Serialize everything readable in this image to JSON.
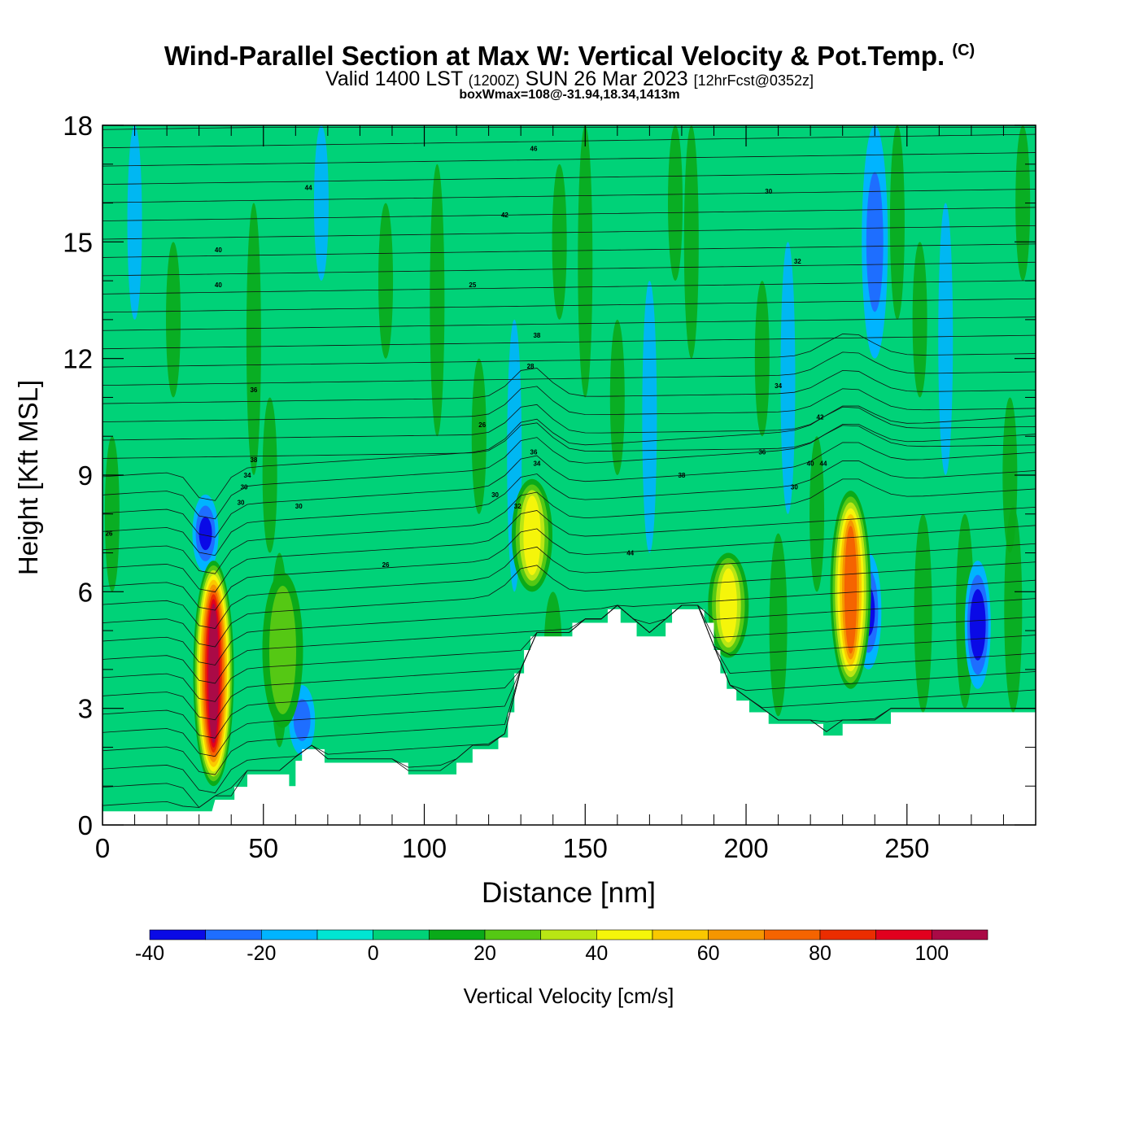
{
  "header": {
    "title": "Wind-Parallel Section at Max W: Vertical Velocity & Pot.Temp.",
    "copyright_mark": "(C)",
    "valid_prefix": "Valid 1400 LST",
    "valid_utc": "(1200Z)",
    "valid_date": "SUN 26 Mar 2023",
    "forecast": "[12hrFcst@0352z]",
    "box_info": "boxWmax=108@-31.94,18.34,1413m"
  },
  "colorbar": {
    "label": "Vertical Velocity [cm/s]",
    "ticks": [
      "-40",
      "-20",
      "0",
      "20",
      "40",
      "60",
      "80",
      "100"
    ],
    "levels": [
      -40,
      -30,
      -20,
      -10,
      0,
      10,
      20,
      30,
      40,
      50,
      60,
      70,
      80,
      90,
      100,
      110
    ],
    "colors": [
      "#0a0ae6",
      "#1e6eff",
      "#00b4ff",
      "#00e6d2",
      "#00d278",
      "#0aaa19",
      "#55c814",
      "#b9e614",
      "#f5f50a",
      "#fac800",
      "#f59600",
      "#f56400",
      "#eb2d00",
      "#e1001e",
      "#aa0a46"
    ]
  },
  "chart_data": {
    "type": "heatmap",
    "title": "Wind-Parallel Section at Max W: Vertical Velocity & Pot.Temp.",
    "xlabel": "Distance [nm]",
    "ylabel": "Height [Kft MSL]",
    "xlim": [
      0,
      290
    ],
    "ylim": [
      0,
      18
    ],
    "x_ticks": [
      0,
      50,
      100,
      150,
      200,
      250
    ],
    "y_ticks": [
      0,
      3,
      6,
      9,
      12,
      15,
      18
    ],
    "background_value_cm_s": 0,
    "terrain": [
      {
        "x": 0,
        "h": 0.35
      },
      {
        "x": 30,
        "h": 0.35
      },
      {
        "x": 34,
        "h": 0.35
      },
      {
        "x": 35,
        "h": 0.65
      },
      {
        "x": 41,
        "h": 0.65
      },
      {
        "x": 41,
        "h": 0.98
      },
      {
        "x": 45,
        "h": 0.98
      },
      {
        "x": 45,
        "h": 1.3
      },
      {
        "x": 58,
        "h": 1.3
      },
      {
        "x": 58,
        "h": 1.0
      },
      {
        "x": 60,
        "h": 1.0
      },
      {
        "x": 60,
        "h": 1.65
      },
      {
        "x": 62,
        "h": 1.65
      },
      {
        "x": 62,
        "h": 1.95
      },
      {
        "x": 69,
        "h": 1.95
      },
      {
        "x": 69,
        "h": 1.6
      },
      {
        "x": 95,
        "h": 1.6
      },
      {
        "x": 95,
        "h": 1.3
      },
      {
        "x": 110,
        "h": 1.3
      },
      {
        "x": 110,
        "h": 1.6
      },
      {
        "x": 115,
        "h": 1.6
      },
      {
        "x": 115,
        "h": 1.95
      },
      {
        "x": 123,
        "h": 1.95
      },
      {
        "x": 123,
        "h": 2.25
      },
      {
        "x": 126,
        "h": 2.25
      },
      {
        "x": 126,
        "h": 2.9
      },
      {
        "x": 128,
        "h": 2.9
      },
      {
        "x": 128,
        "h": 3.9
      },
      {
        "x": 131,
        "h": 3.9
      },
      {
        "x": 131,
        "h": 4.5
      },
      {
        "x": 133,
        "h": 4.5
      },
      {
        "x": 133,
        "h": 4.85
      },
      {
        "x": 146,
        "h": 4.85
      },
      {
        "x": 146,
        "h": 5.2
      },
      {
        "x": 157,
        "h": 5.2
      },
      {
        "x": 157,
        "h": 5.55
      },
      {
        "x": 161,
        "h": 5.55
      },
      {
        "x": 161,
        "h": 5.2
      },
      {
        "x": 166,
        "h": 5.2
      },
      {
        "x": 166,
        "h": 4.85
      },
      {
        "x": 175,
        "h": 4.85
      },
      {
        "x": 175,
        "h": 5.2
      },
      {
        "x": 177,
        "h": 5.2
      },
      {
        "x": 177,
        "h": 5.55
      },
      {
        "x": 187,
        "h": 5.55
      },
      {
        "x": 187,
        "h": 5.2
      },
      {
        "x": 190,
        "h": 5.2
      },
      {
        "x": 190,
        "h": 4.5
      },
      {
        "x": 192,
        "h": 4.5
      },
      {
        "x": 192,
        "h": 3.9
      },
      {
        "x": 194,
        "h": 3.9
      },
      {
        "x": 194,
        "h": 3.5
      },
      {
        "x": 197,
        "h": 3.5
      },
      {
        "x": 197,
        "h": 3.2
      },
      {
        "x": 201,
        "h": 3.2
      },
      {
        "x": 201,
        "h": 2.9
      },
      {
        "x": 207,
        "h": 2.9
      },
      {
        "x": 207,
        "h": 2.6
      },
      {
        "x": 224,
        "h": 2.6
      },
      {
        "x": 224,
        "h": 2.3
      },
      {
        "x": 230,
        "h": 2.3
      },
      {
        "x": 230,
        "h": 2.6
      },
      {
        "x": 245,
        "h": 2.6
      },
      {
        "x": 245,
        "h": 2.9
      },
      {
        "x": 290,
        "h": 2.9
      }
    ],
    "updraft_cores": [
      {
        "x": 34.5,
        "y_min": 1.0,
        "y_max": 6.8,
        "w_max": 108
      },
      {
        "x": 133.5,
        "y_min": 6.0,
        "y_max": 8.9,
        "w_max": 45
      },
      {
        "x": 194.5,
        "y_min": 4.3,
        "y_max": 7.0,
        "w_max": 40
      },
      {
        "x": 232.5,
        "y_min": 3.5,
        "y_max": 8.6,
        "w_max": 70
      },
      {
        "x": 56,
        "y_min": 2.5,
        "y_max": 6.5,
        "w_max": 20
      }
    ],
    "downdraft_cores": [
      {
        "x": 32,
        "y_min": 6.5,
        "y_max": 8.5,
        "w_min": -30
      },
      {
        "x": 62,
        "y_min": 1.8,
        "y_max": 3.6,
        "w_min": -20
      },
      {
        "x": 238,
        "y_min": 4.0,
        "y_max": 7.0,
        "w_min": -30
      },
      {
        "x": 272,
        "y_min": 3.5,
        "y_max": 6.8,
        "w_min": -40
      },
      {
        "x": 240,
        "y_min": 12,
        "y_max": 18,
        "w_min": -20
      }
    ],
    "theta_contour_labels": [
      "26",
      "30",
      "30",
      "34",
      "38",
      "36",
      "30",
      "26",
      "26",
      "25",
      "30",
      "32",
      "34",
      "36",
      "28",
      "38",
      "40",
      "40",
      "44",
      "42",
      "46",
      "44",
      "38",
      "36",
      "34",
      "32",
      "30",
      "30",
      "40",
      "42",
      "44"
    ]
  }
}
